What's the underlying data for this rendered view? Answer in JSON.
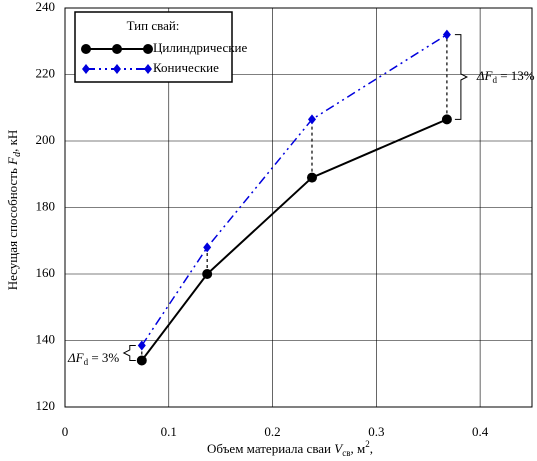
{
  "chart_data": {
    "type": "line",
    "x_label": [
      "Объем материала сваи ",
      "V",
      "св",
      ", м",
      "2",
      ","
    ],
    "y_label": [
      "Несущая способность ",
      "F",
      "d",
      ", кН"
    ],
    "legend_title": "Тип свай:",
    "x": [
      0.074,
      0.137,
      0.238,
      0.368
    ],
    "series": [
      {
        "name": "Цилиндрические",
        "color": "#000000",
        "marker": "circle",
        "dash": "solid",
        "values": [
          134,
          160,
          189,
          206.5
        ]
      },
      {
        "name": "Конические",
        "color": "#0000dd",
        "marker": "diamond",
        "dash": "dashdot",
        "values": [
          138.5,
          168,
          206.5,
          232
        ]
      }
    ],
    "annotations": [
      {
        "symbol": "ΔF",
        "sub": "d",
        "text": " = 13%"
      },
      {
        "symbol": "ΔF",
        "sub": "d",
        "text": " = 3%"
      }
    ],
    "xlim": [
      0,
      0.45
    ],
    "ylim": [
      120,
      240
    ],
    "xticks": [
      0,
      0.1,
      0.2,
      0.3,
      0.4
    ],
    "yticks": [
      120,
      140,
      160,
      180,
      200,
      220,
      240
    ],
    "grid": true,
    "legend": "upper left"
  }
}
